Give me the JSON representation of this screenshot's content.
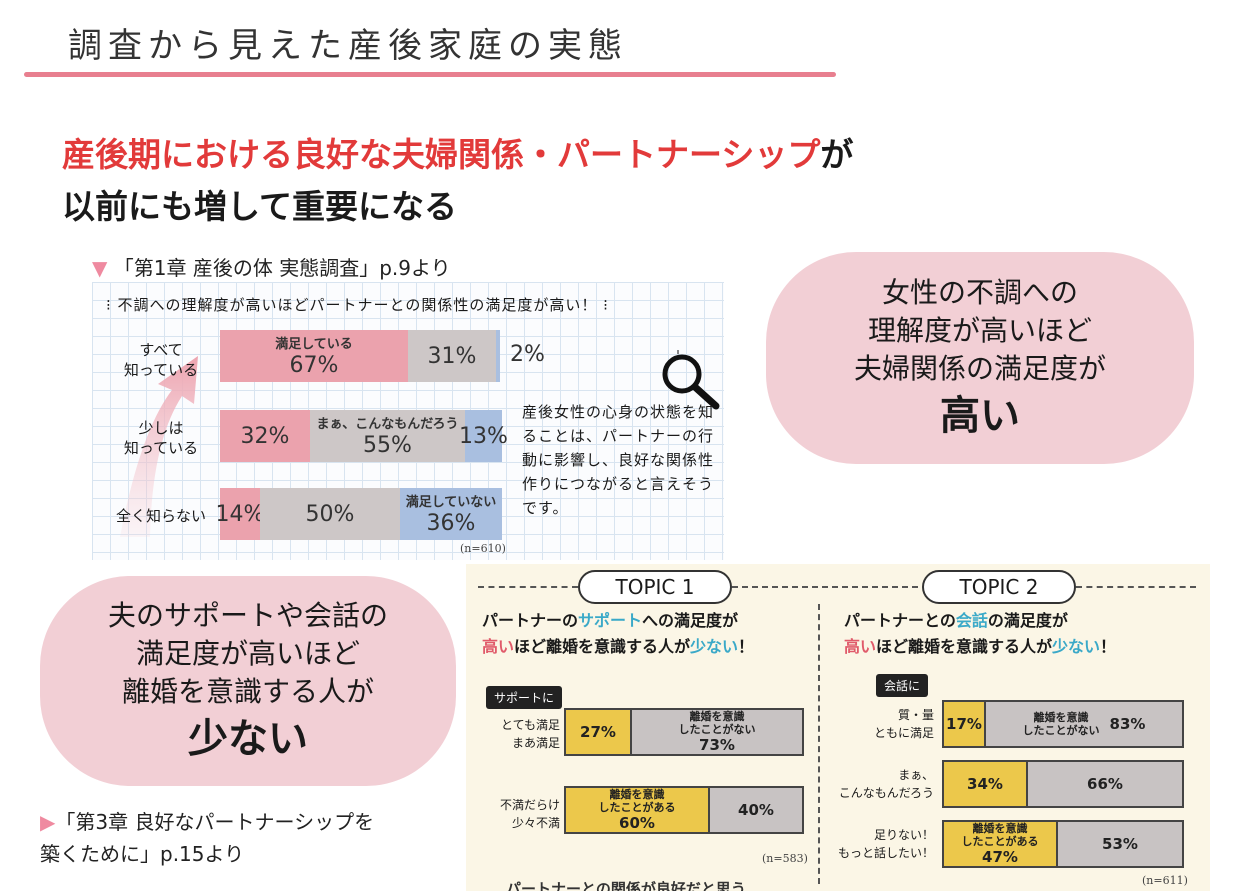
{
  "header": {
    "title": "調査から見えた産後家庭の実態"
  },
  "headline": {
    "line1_red": "産後期における良好な夫婦関係・パートナーシップ",
    "line1_black": "が",
    "line2": "以前にも増して重要になる"
  },
  "source1": {
    "marker": "▼",
    "text": "「第1章 産後の体 実態調査」p.9より"
  },
  "chart1": {
    "heading": "不調への理解度が高いほどパートナーとの関係性の満足度が高い！",
    "rows": [
      {
        "label_line1": "すべて",
        "label_line2": "知っている",
        "seg1_sub": "満足している",
        "seg1": "67%",
        "seg2": "31%",
        "seg3": "2%"
      },
      {
        "label_line1": "少しは",
        "label_line2": "知っている",
        "seg1": "32%",
        "seg2_sub": "まぁ、こんなもんだろう",
        "seg2": "55%",
        "seg3": "13%"
      },
      {
        "label_line1": "全く知らない",
        "seg1": "14%",
        "seg2": "50%",
        "seg3_sub": "満足していない",
        "seg3": "36%"
      }
    ],
    "n": "(n=610)",
    "note": "産後女性の心身の状態を知ることは、パートナーの行動に影響し、良好な関係性作りにつながると言えそうです。",
    "search_icon": "magnifier-icon"
  },
  "bubble_right": {
    "line1": "女性の不調への",
    "line2": "理解度が高いほど",
    "line3": "夫婦関係の満足度が",
    "emph": "高い"
  },
  "bubble_left": {
    "line1": "夫のサポートや会話の",
    "line2": "満足度が高いほど",
    "line3": "離婚を意識する人が",
    "emph": "少ない"
  },
  "source2": {
    "marker": "▶",
    "line1": "「第3章 良好なパートナーシップを",
    "line2": "築くために」p.15より"
  },
  "topic1": {
    "pill": "TOPIC 1",
    "head_a": "パートナーの",
    "head_b": "サポート",
    "head_c": "への満足度が",
    "head_d": "高い",
    "head_e": "ほど離婚を意識する人が",
    "head_f": "少ない",
    "head_g": "！",
    "tag": "サポートに",
    "rows": [
      {
        "label1": "とても満足",
        "label2": "まあ満足",
        "seg1": "27%",
        "seg2_sub1": "離婚を意識",
        "seg2_sub2": "したことがない",
        "seg2": "73%"
      },
      {
        "label1": "不満だらけ",
        "label2": "少々不満",
        "seg1_sub1": "離婚を意識",
        "seg1_sub2": "したことがある",
        "seg1": "60%",
        "seg2": "40%"
      }
    ],
    "n": "(n=583)",
    "cut": "パートナーとの関係が良好だと思う"
  },
  "topic2": {
    "pill": "TOPIC 2",
    "head_a": "パートナーとの",
    "head_b": "会話",
    "head_c": "の満足度が",
    "head_d": "高い",
    "head_e": "ほど離婚を意識する人が",
    "head_f": "少ない",
    "head_g": "！",
    "tag": "会話に",
    "rows": [
      {
        "label1": "質・量",
        "label2": "ともに満足",
        "seg1": "17%",
        "seg2_sub1": "離婚を意識",
        "seg2_sub2": "したことがない",
        "seg2": "83%"
      },
      {
        "label1": "まぁ、",
        "label2": "こんなもんだろう",
        "seg1": "34%",
        "seg2": "66%"
      },
      {
        "label1": "足りない！",
        "label2": "もっと話したい！",
        "seg1_sub1": "離婚を意識",
        "seg1_sub2": "したことがある",
        "seg1": "47%",
        "seg2": "53%"
      }
    ],
    "n": "(n=611)"
  }
}
